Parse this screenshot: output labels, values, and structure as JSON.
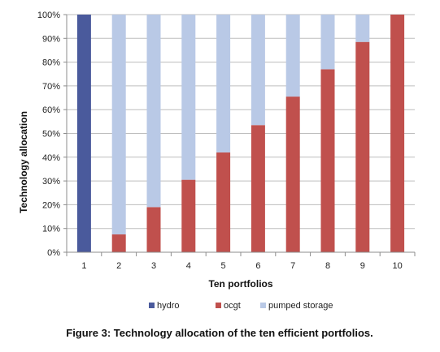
{
  "chart_data": {
    "type": "bar",
    "stacked": true,
    "categories": [
      "1",
      "2",
      "3",
      "4",
      "5",
      "6",
      "7",
      "8",
      "9",
      "10"
    ],
    "series": [
      {
        "name": "hydro",
        "color": "#4A5A9C",
        "values": [
          100,
          0,
          0,
          0,
          0,
          0,
          0,
          0,
          0,
          0
        ]
      },
      {
        "name": "ocgt",
        "color": "#C0504D",
        "values": [
          0,
          7.5,
          19,
          30.5,
          42,
          53.5,
          65.5,
          77,
          88.5,
          100
        ]
      },
      {
        "name": "pumped storage",
        "color": "#B9C9E6",
        "values": [
          0,
          92.5,
          81,
          69.5,
          58,
          46.5,
          34.5,
          23,
          11.5,
          0
        ]
      }
    ],
    "xlabel": "Ten  portfolios",
    "ylabel": "Technology allocation",
    "ylim": [
      0,
      100
    ],
    "yticks": [
      "0%",
      "10%",
      "20%",
      "30%",
      "40%",
      "50%",
      "60%",
      "70%",
      "80%",
      "90%",
      "100%"
    ],
    "grid": "horizontal",
    "legend_position": "bottom"
  },
  "caption": "Figure 3: Technology allocation of the ten efficient portfolios."
}
